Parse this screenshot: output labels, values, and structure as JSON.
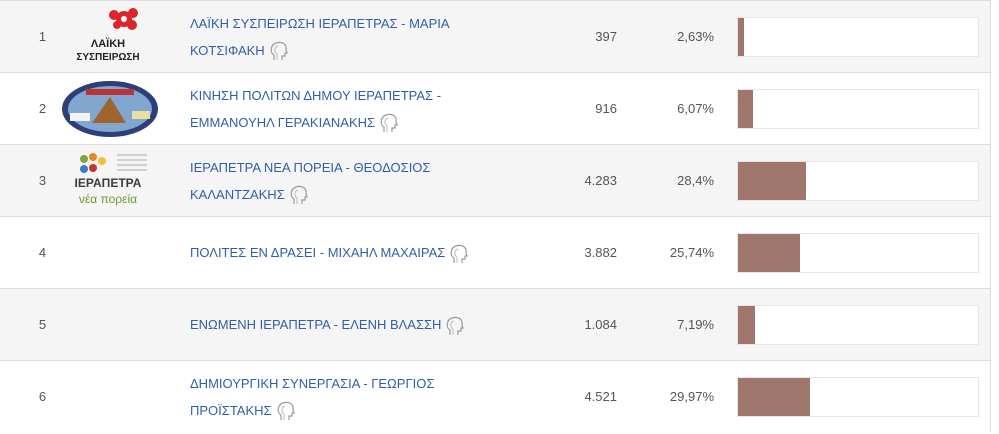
{
  "rows": [
    {
      "rank": 1,
      "logo_text": [
        "ΛΑΪΚΗ",
        "ΣΥΣΠΕΙΡΩΣΗ"
      ],
      "name": "ΛΑΪΚΗ ΣΥΣΠΕΙΡΩΣΗ ΙΕΡΑΠΕΤΡΑΣ - ΜΑΡΙΑ ΚΟΤΣΙΦΑΚΗ",
      "votes": "397",
      "share": {
        "value": 2.63,
        "label": "2,63%"
      }
    },
    {
      "rank": 2,
      "name": "ΚΙΝΗΣΗ ΠΟΛΙΤΩΝ ΔΗΜΟΥ ΙΕΡΑΠΕΤΡΑΣ - ΕΜΜΑΝΟΥΗΛ ΓΕΡΑΚΙΑΝΑΚΗΣ",
      "votes": "916",
      "share": {
        "value": 6.07,
        "label": "6,07%"
      }
    },
    {
      "rank": 3,
      "logo_text": [
        "ΙΕΡΑΠΕΤΡΑ",
        "νέα πορεία"
      ],
      "name": "ΙΕΡΑΠΕΤΡΑ ΝΕΑ ΠΟΡΕΙΑ - ΘΕΟΔΟΣΙΟΣ ΚΑΛΑΝΤΖΑΚΗΣ",
      "votes": "4.283",
      "share": {
        "value": 28.4,
        "label": "28,4%"
      }
    },
    {
      "rank": 4,
      "name": "ΠΟΛΙΤΕΣ ΕΝ ΔΡΑΣΕΙ - ΜΙΧΑΗΛ ΜΑΧΑΙΡΑΣ",
      "votes": "3.882",
      "share": {
        "value": 25.74,
        "label": "25,74%"
      }
    },
    {
      "rank": 5,
      "name": "ΕΝΩΜΕΝΗ ΙΕΡΑΠΕΤΡΑ - ΕΛΕΝΗ ΒΛΑΣΣΗ",
      "votes": "1.084",
      "share": {
        "value": 7.19,
        "label": "7,19%"
      }
    },
    {
      "rank": 6,
      "name": "ΔΗΜΙΟΥΡΓΙΚΗ ΣΥΝΕΡΓΑΣΙΑ - ΓΕΩΡΓΙΟΣ ΠΡΟΪΣΤΑΚΗΣ",
      "votes": "4.521",
      "share": {
        "value": 29.97,
        "label": "29,97%"
      }
    }
  ]
}
